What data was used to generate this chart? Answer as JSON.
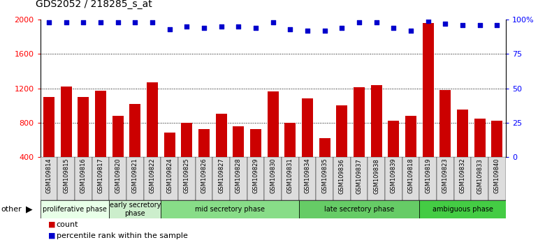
{
  "title": "GDS2052 / 218285_s_at",
  "samples": [
    "GSM109814",
    "GSM109815",
    "GSM109816",
    "GSM109817",
    "GSM109820",
    "GSM109821",
    "GSM109822",
    "GSM109824",
    "GSM109825",
    "GSM109826",
    "GSM109827",
    "GSM109828",
    "GSM109829",
    "GSM109830",
    "GSM109831",
    "GSM109834",
    "GSM109835",
    "GSM109836",
    "GSM109837",
    "GSM109838",
    "GSM109839",
    "GSM109818",
    "GSM109819",
    "GSM109823",
    "GSM109832",
    "GSM109833",
    "GSM109840"
  ],
  "counts": [
    1100,
    1220,
    1100,
    1170,
    880,
    1020,
    1270,
    680,
    800,
    720,
    900,
    760,
    720,
    1160,
    800,
    1080,
    620,
    1000,
    1210,
    1240,
    820,
    880,
    1960,
    1180,
    950,
    850,
    820
  ],
  "percentile": [
    98,
    98,
    98,
    98,
    98,
    98,
    98,
    93,
    95,
    94,
    95,
    95,
    94,
    98,
    93,
    92,
    92,
    94,
    98,
    98,
    94,
    92,
    99,
    97,
    96,
    96,
    96
  ],
  "phases": [
    {
      "label": "proliferative phase",
      "start": 0,
      "end": 4,
      "color": "#e8ffe8"
    },
    {
      "label": "early secretory\nphase",
      "start": 4,
      "end": 7,
      "color": "#cceecc"
    },
    {
      "label": "mid secretory phase",
      "start": 7,
      "end": 15,
      "color": "#88dd88"
    },
    {
      "label": "late secretory phase",
      "start": 15,
      "end": 22,
      "color": "#66cc66"
    },
    {
      "label": "ambiguous phase",
      "start": 22,
      "end": 27,
      "color": "#44cc44"
    }
  ],
  "bar_color": "#cc0000",
  "dot_color": "#0000cc",
  "ylim_left": [
    400,
    2000
  ],
  "ylim_right": [
    0,
    100
  ],
  "yticks_left": [
    400,
    800,
    1200,
    1600,
    2000
  ],
  "yticks_right": [
    0,
    25,
    50,
    75,
    100
  ],
  "ytick_labels_left": [
    "400",
    "800",
    "1200",
    "1600",
    "2000"
  ],
  "ytick_labels_right": [
    "0",
    "25",
    "50",
    "75",
    "100%"
  ],
  "tick_bg_color": "#dddddd",
  "legend_count_color": "#cc0000",
  "legend_pct_color": "#0000cc"
}
